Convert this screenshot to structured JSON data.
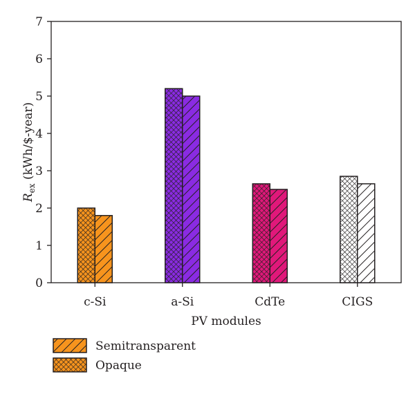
{
  "chart_data": {
    "type": "bar",
    "categories": [
      "c-Si",
      "a-Si",
      "CdTe",
      "CIGS"
    ],
    "series": [
      {
        "name": "Opaque",
        "values": [
          2.0,
          5.2,
          2.65,
          2.85
        ],
        "pattern": "crosshatch"
      },
      {
        "name": "Semitransparent",
        "values": [
          1.8,
          5.0,
          2.5,
          2.65
        ],
        "pattern": "diagonal"
      }
    ],
    "category_colors": [
      "#f7941d",
      "#8a2be2",
      "#e0187a",
      "#ffffff"
    ],
    "xlabel": "PV modules",
    "ylabel": {
      "main": "R",
      "sub": "ex",
      "rest": " (kWh/$-year)"
    },
    "ylim": [
      0,
      7
    ],
    "yticks": [
      "0",
      "1",
      "2",
      "3",
      "4",
      "5",
      "6",
      "7"
    ],
    "grid": false,
    "legend_position": "bottom-left",
    "legend": [
      {
        "label": "Semitransparent",
        "pattern": "diagonal"
      },
      {
        "label": "Opaque",
        "pattern": "crosshatch"
      }
    ],
    "legend_color": "#f7941d"
  }
}
